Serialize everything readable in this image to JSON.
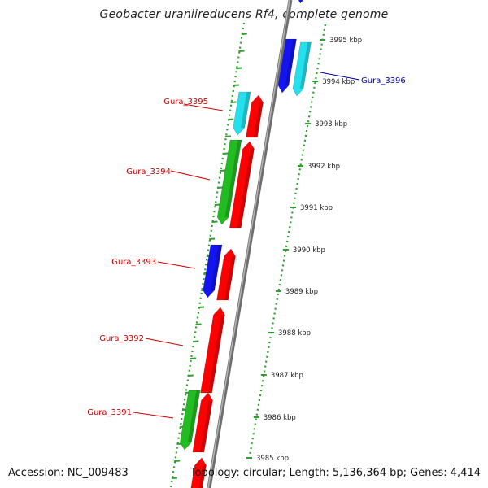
{
  "title": "Geobacter uraniireducens Rf4, complete genome",
  "footer": {
    "accession": "Accession: NC_009483",
    "stats": "Topology: circular; Length: 5,136,364 bp; Genes: 4,414"
  },
  "colors": {
    "backbone": "#888888",
    "dotted_ring": "#2e9e2e",
    "tick": "#2e9e2e",
    "label_reverse": "#cc0000",
    "label_forward": "#0000aa",
    "red": "#ff0000",
    "blue": "#1414ee",
    "cyan": "#22e0ee",
    "green": "#22bb22"
  },
  "scale": {
    "unit": "kbp",
    "labels": [
      {
        "kbp": 3995,
        "text": "3995 kbp"
      },
      {
        "kbp": 3994,
        "text": "3994 kbp"
      },
      {
        "kbp": 3993,
        "text": "3993 kbp"
      },
      {
        "kbp": 3992,
        "text": "3992 kbp"
      },
      {
        "kbp": 3991,
        "text": "3991 kbp"
      },
      {
        "kbp": 3990,
        "text": "3990 kbp"
      },
      {
        "kbp": 3989,
        "text": "3989 kbp"
      },
      {
        "kbp": 3988,
        "text": "3988 kbp"
      },
      {
        "kbp": 3987,
        "text": "3987 kbp"
      },
      {
        "kbp": 3986,
        "text": "3986 kbp"
      },
      {
        "kbp": 3985,
        "text": "3985 kbp"
      }
    ]
  },
  "gene_labels": [
    {
      "text": "Gura_3396",
      "strand": "forward"
    },
    {
      "text": "Gura_3395",
      "strand": "reverse"
    },
    {
      "text": "Gura_3394",
      "strand": "reverse"
    },
    {
      "text": "Gura_3393",
      "strand": "reverse"
    },
    {
      "text": "Gura_3392",
      "strand": "reverse"
    },
    {
      "text": "Gura_3391",
      "strand": "reverse"
    }
  ]
}
